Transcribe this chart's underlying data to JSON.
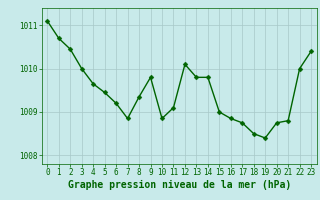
{
  "x": [
    0,
    1,
    2,
    3,
    4,
    5,
    6,
    7,
    8,
    9,
    10,
    11,
    12,
    13,
    14,
    15,
    16,
    17,
    18,
    19,
    20,
    21,
    22,
    23
  ],
  "y": [
    1011.1,
    1010.7,
    1010.45,
    1010.0,
    1009.65,
    1009.45,
    1009.2,
    1008.85,
    1009.35,
    1009.8,
    1008.85,
    1009.1,
    1010.1,
    1009.8,
    1009.8,
    1009.0,
    1008.85,
    1008.75,
    1008.5,
    1008.4,
    1008.75,
    1008.8,
    1010.0,
    1010.4
  ],
  "line_color": "#006400",
  "marker": "D",
  "marker_size": 2.5,
  "line_width": 1.0,
  "bg_color": "#c8eaea",
  "grid_color": "#a8c8c8",
  "xlabel": "Graphe pression niveau de la mer (hPa)",
  "xlabel_color": "#006400",
  "xlabel_fontsize": 7.0,
  "xlabel_bold": true,
  "yticks": [
    1008,
    1009,
    1010,
    1011
  ],
  "xticks": [
    0,
    1,
    2,
    3,
    4,
    5,
    6,
    7,
    8,
    9,
    10,
    11,
    12,
    13,
    14,
    15,
    16,
    17,
    18,
    19,
    20,
    21,
    22,
    23
  ],
  "ylim": [
    1007.8,
    1011.4
  ],
  "xlim": [
    -0.5,
    23.5
  ],
  "tick_fontsize": 5.5,
  "tick_color": "#006400",
  "spine_color": "#006400"
}
